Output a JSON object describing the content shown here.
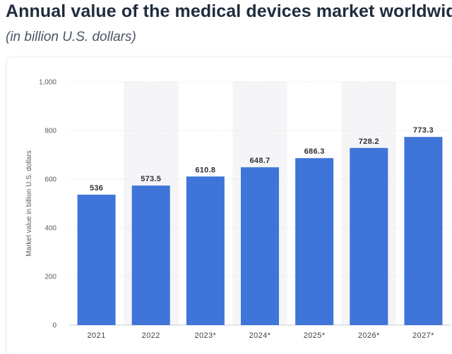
{
  "chart_data": {
    "type": "bar",
    "title": "Annual value of the medical devices market worldwide",
    "subtitle": "(in billion U.S. dollars)",
    "xlabel": "",
    "ylabel": "Market value in billion U.S. dollars",
    "categories": [
      "2021",
      "2022",
      "2023*",
      "2024*",
      "2025*",
      "2026*",
      "2027*"
    ],
    "values": [
      536,
      573.5,
      610.8,
      648.7,
      686.3,
      728.2,
      773.3
    ],
    "value_labels": [
      "536",
      "573.5",
      "610.8",
      "648.7",
      "686.3",
      "728.2",
      "773.3"
    ],
    "ylim": [
      0,
      1000
    ],
    "yticks": [
      0,
      200,
      400,
      600,
      800,
      1000
    ],
    "ytick_labels": [
      "0",
      "200",
      "400",
      "600",
      "800",
      "1,000"
    ],
    "grid": true,
    "bar_color": "#3f74d9",
    "band_color": "#f5f5f7"
  }
}
